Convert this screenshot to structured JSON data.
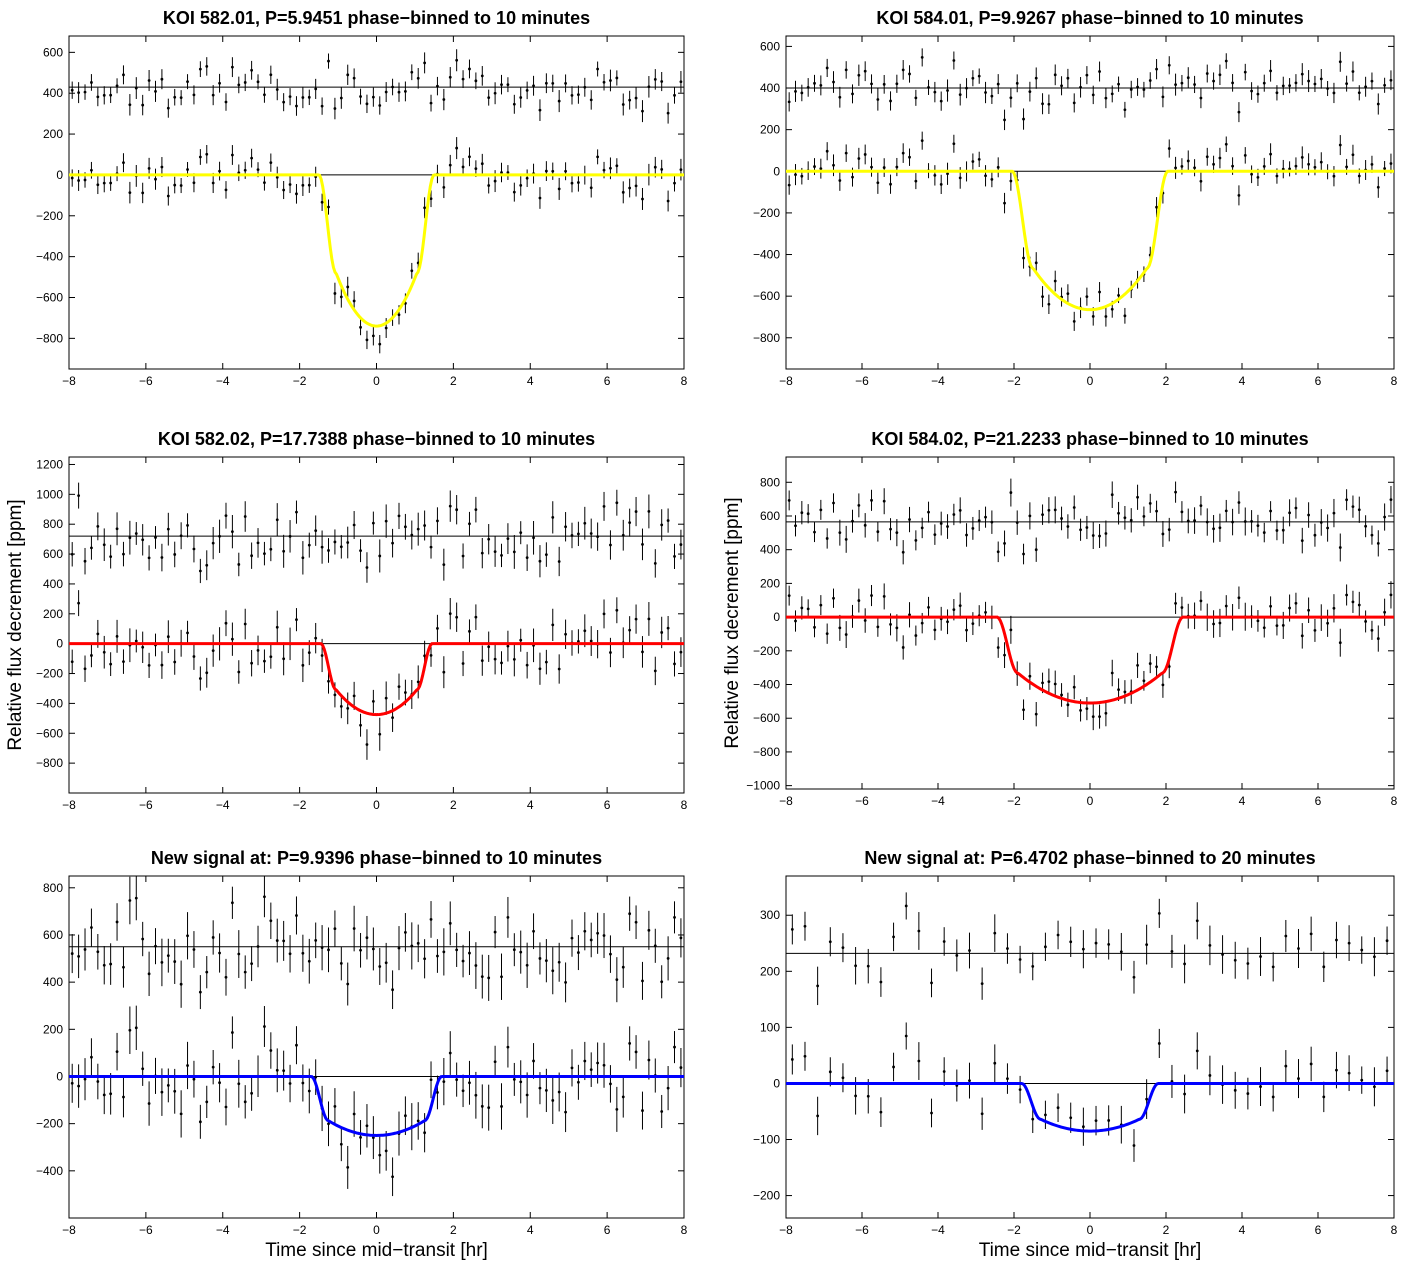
{
  "chart_data": [
    {
      "type": "scatter",
      "title": "KOI 582.01, P=5.9451 phase−binned to 10 minutes",
      "xlabel": "",
      "ylabel": "",
      "xlim": [
        -8,
        8
      ],
      "ylim": [
        -950,
        680
      ],
      "xticks": [
        -8,
        -6,
        -4,
        -2,
        0,
        2,
        4,
        6,
        8
      ],
      "yticks": [
        -800,
        -600,
        -400,
        -200,
        0,
        200,
        400,
        600
      ],
      "model": {
        "color": "#ffff00",
        "depth": 740,
        "T14": 3.0,
        "ingress": 0.45,
        "curv": 0.35
      },
      "residual_offset": 430,
      "bin_minutes": 10,
      "noise_ppm": 55,
      "err_ppm": 45,
      "seed": 11,
      "series": [
        {
          "role": "model",
          "color": "#ffff00"
        },
        {
          "role": "data",
          "color": "#000000"
        },
        {
          "role": "residuals",
          "color": "#000000"
        }
      ]
    },
    {
      "type": "scatter",
      "title": "KOI 584.01, P=9.9267 phase−binned to 10 minutes",
      "xlabel": "",
      "ylabel": "",
      "xlim": [
        -8,
        8
      ],
      "ylim": [
        -950,
        650
      ],
      "xticks": [
        -8,
        -6,
        -4,
        -2,
        0,
        2,
        4,
        6,
        8
      ],
      "yticks": [
        -800,
        -600,
        -400,
        -200,
        0,
        200,
        400,
        600
      ],
      "model": {
        "color": "#ffff00",
        "depth": 665,
        "T14": 4.1,
        "ingress": 0.55,
        "curv": 0.3
      },
      "residual_offset": 400,
      "bin_minutes": 10,
      "noise_ppm": 60,
      "err_ppm": 45,
      "seed": 23,
      "series": [
        {
          "role": "model",
          "color": "#ffff00"
        },
        {
          "role": "data",
          "color": "#000000"
        },
        {
          "role": "residuals",
          "color": "#000000"
        }
      ]
    },
    {
      "type": "scatter",
      "title": "KOI 582.02, P=17.7388 phase−binned to 10 minutes",
      "xlabel": "",
      "ylabel": "Relative flux decrement [ppm]",
      "xlim": [
        -8,
        8
      ],
      "ylim": [
        -1000,
        1250
      ],
      "xticks": [
        -8,
        -6,
        -4,
        -2,
        0,
        2,
        4,
        6,
        8
      ],
      "yticks": [
        -800,
        -600,
        -400,
        -200,
        0,
        200,
        400,
        600,
        800,
        1000,
        1200
      ],
      "model": {
        "color": "#ff0000",
        "depth": 475,
        "T14": 2.9,
        "ingress": 0.4,
        "curv": 0.35
      },
      "residual_offset": 720,
      "bin_minutes": 10,
      "noise_ppm": 110,
      "err_ppm": 95,
      "seed": 37,
      "series": [
        {
          "role": "model",
          "color": "#ff0000"
        },
        {
          "role": "data",
          "color": "#000000"
        },
        {
          "role": "residuals",
          "color": "#000000"
        }
      ]
    },
    {
      "type": "scatter",
      "title": "KOI 584.02, P=21.2233 phase−binned to 10 minutes",
      "xlabel": "",
      "ylabel": "Relative flux decrement [ppm]",
      "xlim": [
        -8,
        8
      ],
      "ylim": [
        -1020,
        950
      ],
      "xticks": [
        -8,
        -6,
        -4,
        -2,
        0,
        2,
        4,
        6,
        8
      ],
      "yticks": [
        -1000,
        -800,
        -600,
        -400,
        -200,
        0,
        200,
        400,
        600,
        800
      ],
      "model": {
        "color": "#ff0000",
        "depth": 510,
        "T14": 4.9,
        "ingress": 0.55,
        "curv": 0.35
      },
      "residual_offset": 565,
      "bin_minutes": 10,
      "noise_ppm": 90,
      "err_ppm": 70,
      "seed": 53,
      "series": [
        {
          "role": "model",
          "color": "#ff0000"
        },
        {
          "role": "data",
          "color": "#000000"
        },
        {
          "role": "residuals",
          "color": "#000000"
        }
      ]
    },
    {
      "type": "scatter",
      "title": "New signal at: P=9.9396 phase−binned to 10 minutes",
      "xlabel": "Time since mid−transit [hr]",
      "ylabel": "",
      "xlim": [
        -8,
        8
      ],
      "ylim": [
        -600,
        850
      ],
      "xticks": [
        -8,
        -6,
        -4,
        -2,
        0,
        2,
        4,
        6,
        8
      ],
      "yticks": [
        -400,
        -200,
        0,
        200,
        400,
        600,
        800
      ],
      "model": {
        "color": "#0000ff",
        "depth": 250,
        "T14": 3.4,
        "ingress": 0.45,
        "curv": 0.25
      },
      "residual_offset": 550,
      "bin_minutes": 10,
      "noise_ppm": 90,
      "err_ppm": 85,
      "seed": 71,
      "series": [
        {
          "role": "model",
          "color": "#0000ff"
        },
        {
          "role": "data",
          "color": "#000000"
        },
        {
          "role": "residuals",
          "color": "#000000"
        }
      ]
    },
    {
      "type": "scatter",
      "title": "New signal at: P=6.4702 phase−binned to 20 minutes",
      "xlabel": "Time since mid−transit [hr]",
      "ylabel": "",
      "xlim": [
        -8,
        8
      ],
      "ylim": [
        -240,
        370
      ],
      "xticks": [
        -8,
        -6,
        -4,
        -2,
        0,
        2,
        4,
        6,
        8
      ],
      "yticks": [
        -200,
        -100,
        0,
        100,
        200,
        300
      ],
      "model": {
        "color": "#0000ff",
        "depth": 85,
        "T14": 3.6,
        "ingress": 0.5,
        "curv": 0.25
      },
      "residual_offset": 232,
      "bin_minutes": 20,
      "noise_ppm": 30,
      "err_ppm": 30,
      "seed": 97,
      "series": [
        {
          "role": "model",
          "color": "#0000ff"
        },
        {
          "role": "data",
          "color": "#000000"
        },
        {
          "role": "residuals",
          "color": "#000000"
        }
      ]
    }
  ]
}
